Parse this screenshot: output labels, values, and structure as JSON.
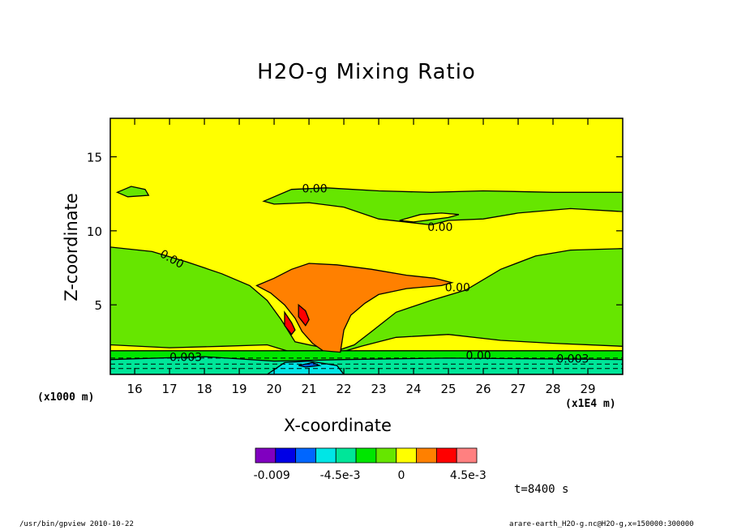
{
  "chart_data": {
    "type": "heatmap",
    "title": "H2O-g Mixing Ratio",
    "xlabel": "X-coordinate",
    "ylabel": "Z-coordinate",
    "x_unit_note": "(x1000 m)",
    "x_scale_note": "(x1E4 m)",
    "xlim": [
      15.3,
      30.0
    ],
    "ylim": [
      0.3,
      17.6
    ],
    "x_ticks": [
      16,
      17,
      18,
      19,
      20,
      21,
      22,
      23,
      24,
      25,
      26,
      27,
      28,
      29
    ],
    "y_ticks": [
      5,
      10,
      15
    ],
    "background_color": "#ffff00",
    "regions": [
      {
        "name": "moist-layer-mid",
        "color": "#66e600",
        "poly": [
          [
            15.3,
            8.9
          ],
          [
            16.5,
            8.6
          ],
          [
            17.5,
            7.9
          ],
          [
            18.5,
            7.1
          ],
          [
            19.3,
            6.3
          ],
          [
            19.8,
            5.3
          ],
          [
            20.2,
            4.0
          ],
          [
            20.6,
            2.5
          ],
          [
            21.2,
            2.2
          ],
          [
            21.8,
            1.9
          ],
          [
            22.3,
            2.3
          ],
          [
            22.8,
            3.2
          ],
          [
            23.5,
            4.5
          ],
          [
            24.5,
            5.3
          ],
          [
            25.5,
            6.0
          ],
          [
            26.5,
            7.4
          ],
          [
            27.5,
            8.3
          ],
          [
            28.5,
            8.7
          ],
          [
            30.0,
            8.8
          ],
          [
            30.0,
            0.3
          ],
          [
            15.3,
            0.3
          ]
        ]
      },
      {
        "name": "moist-layer-upper",
        "color": "#66e600",
        "poly": [
          [
            19.7,
            12.0
          ],
          [
            20.5,
            12.8
          ],
          [
            21.5,
            12.9
          ],
          [
            23.0,
            12.7
          ],
          [
            24.5,
            12.6
          ],
          [
            26.0,
            12.7
          ],
          [
            28.0,
            12.6
          ],
          [
            30.0,
            12.6
          ],
          [
            30.0,
            11.3
          ],
          [
            28.5,
            11.5
          ],
          [
            27.0,
            11.2
          ],
          [
            26.0,
            10.8
          ],
          [
            25.0,
            10.7
          ],
          [
            24.5,
            10.4
          ],
          [
            23.0,
            10.8
          ],
          [
            22.0,
            11.6
          ],
          [
            21.0,
            11.9
          ],
          [
            20.0,
            11.8
          ]
        ]
      },
      {
        "name": "moist-patch-upper-left",
        "color": "#66e600",
        "poly": [
          [
            15.5,
            12.6
          ],
          [
            15.9,
            13.0
          ],
          [
            16.3,
            12.8
          ],
          [
            16.4,
            12.4
          ],
          [
            15.8,
            12.3
          ]
        ]
      },
      {
        "name": "dry-patch-upper",
        "color": "#ffff00",
        "poly": [
          [
            23.6,
            10.7
          ],
          [
            24.2,
            11.1
          ],
          [
            24.8,
            11.2
          ],
          [
            25.3,
            11.1
          ],
          [
            25.0,
            10.9
          ],
          [
            24.0,
            10.6
          ]
        ]
      },
      {
        "name": "surface-yellow-band",
        "color": "#ffff00",
        "poly": [
          [
            15.3,
            2.3
          ],
          [
            17.0,
            2.1
          ],
          [
            18.5,
            2.2
          ],
          [
            19.8,
            2.3
          ],
          [
            20.5,
            1.8
          ],
          [
            21.5,
            1.5
          ],
          [
            22.5,
            2.2
          ],
          [
            23.5,
            2.8
          ],
          [
            25.0,
            3.0
          ],
          [
            26.5,
            2.6
          ],
          [
            28.0,
            2.4
          ],
          [
            30.0,
            2.2
          ],
          [
            30.0,
            1.8
          ],
          [
            15.3,
            1.8
          ]
        ]
      },
      {
        "name": "surface-green-band",
        "color": "#00e600",
        "poly": [
          [
            15.3,
            1.9
          ],
          [
            30.0,
            1.9
          ],
          [
            30.0,
            1.2
          ],
          [
            15.3,
            1.2
          ]
        ]
      },
      {
        "name": "surface-teal-band",
        "color": "#00e699",
        "poly": [
          [
            15.3,
            1.3
          ],
          [
            18.0,
            1.5
          ],
          [
            20.0,
            1.2
          ],
          [
            22.0,
            1.3
          ],
          [
            25.0,
            1.4
          ],
          [
            30.0,
            1.3
          ],
          [
            30.0,
            0.3
          ],
          [
            15.3,
            0.3
          ]
        ]
      },
      {
        "name": "surface-cyan-patch",
        "color": "#00e6e6",
        "poly": [
          [
            19.8,
            0.3
          ],
          [
            20.3,
            1.1
          ],
          [
            21.0,
            1.2
          ],
          [
            21.8,
            0.9
          ],
          [
            22.0,
            0.3
          ]
        ]
      },
      {
        "name": "surface-blue-spot",
        "color": "#0066ff",
        "poly": [
          [
            20.7,
            0.9
          ],
          [
            21.1,
            1.1
          ],
          [
            21.3,
            0.9
          ],
          [
            20.9,
            0.8
          ]
        ]
      },
      {
        "name": "anvil-orange",
        "color": "#ff8000",
        "poly": [
          [
            19.5,
            6.3
          ],
          [
            20.0,
            6.8
          ],
          [
            20.5,
            7.4
          ],
          [
            21.0,
            7.8
          ],
          [
            21.8,
            7.7
          ],
          [
            22.8,
            7.4
          ],
          [
            23.8,
            7.0
          ],
          [
            24.6,
            6.8
          ],
          [
            25.1,
            6.5
          ],
          [
            24.8,
            6.3
          ],
          [
            23.8,
            6.1
          ],
          [
            23.0,
            5.7
          ],
          [
            22.6,
            5.1
          ],
          [
            22.2,
            4.3
          ],
          [
            22.0,
            3.3
          ],
          [
            21.9,
            1.8
          ],
          [
            21.4,
            1.9
          ],
          [
            21.1,
            2.4
          ],
          [
            20.8,
            3.2
          ],
          [
            20.6,
            4.1
          ],
          [
            20.3,
            5.0
          ],
          [
            19.9,
            5.8
          ]
        ]
      },
      {
        "name": "core-red-1",
        "color": "#ff0000",
        "poly": [
          [
            20.3,
            4.5
          ],
          [
            20.5,
            3.8
          ],
          [
            20.6,
            3.3
          ],
          [
            20.5,
            3.0
          ],
          [
            20.3,
            3.6
          ]
        ]
      },
      {
        "name": "core-red-2",
        "color": "#ff0000",
        "poly": [
          [
            20.7,
            5.0
          ],
          [
            20.9,
            4.6
          ],
          [
            21.0,
            4.0
          ],
          [
            20.9,
            3.6
          ],
          [
            20.7,
            4.2
          ]
        ]
      }
    ],
    "contour_labels": [
      {
        "text": "0.00",
        "x": 20.8,
        "y": 12.6,
        "rotate": 0
      },
      {
        "text": "0.00",
        "x": 24.4,
        "y": 10.0,
        "rotate": 0
      },
      {
        "text": "0.00",
        "x": 16.7,
        "y": 8.3,
        "rotate": 30
      },
      {
        "text": "0.00",
        "x": 24.9,
        "y": 5.9,
        "rotate": 0
      },
      {
        "text": "0.003",
        "x": 17.0,
        "y": 1.2,
        "rotate": 0
      },
      {
        "text": "0.00",
        "x": 25.5,
        "y": 1.3,
        "rotate": 0
      },
      {
        "text": "0.003",
        "x": 28.1,
        "y": 1.1,
        "rotate": 0
      }
    ],
    "colorbar": {
      "colors": [
        "#8000c0",
        "#0000e6",
        "#0066ff",
        "#00e6e6",
        "#00e699",
        "#00e600",
        "#66e600",
        "#ffff00",
        "#ff8000",
        "#ff0000",
        "#ff8080"
      ],
      "tick_labels": [
        {
          "text": "-0.009",
          "pos": 0.074
        },
        {
          "text": "-4.5e-3",
          "pos": 0.383
        },
        {
          "text": "0",
          "pos": 0.659
        },
        {
          "text": "4.5e-3",
          "pos": 0.961
        }
      ]
    }
  },
  "annotations": {
    "time": "t=8400 s",
    "footer_left": "/usr/bin/gpview   2010-10-22",
    "footer_right": "arare-earth_H2O-g.nc@H2O-g,x=150000:300000"
  }
}
